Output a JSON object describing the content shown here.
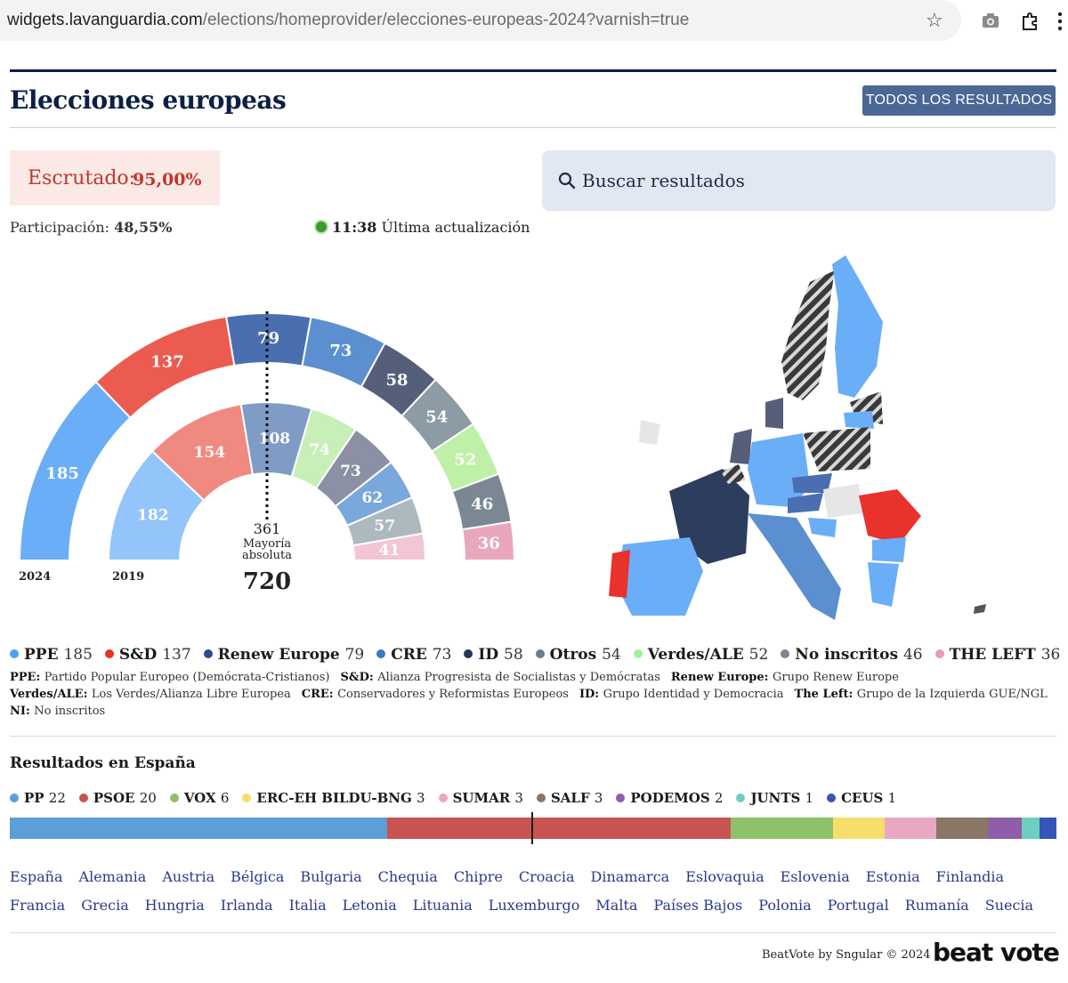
{
  "browser": {
    "host": "widgets.lavanguardia.com",
    "path": "/elections/homeprovider/elecciones-europeas-2024?varnish=true"
  },
  "header": {
    "title": "Elecciones europeas",
    "all_results_button": "TODOS LOS RESULTADOS"
  },
  "status": {
    "escrutado_label": "Escrutado:",
    "escrutado_value": "95,00%",
    "participacion_label": "Participación:",
    "participacion_value": "48,55%",
    "update_time": "11:38",
    "update_label": "Última actualización"
  },
  "search": {
    "label": "Buscar resultados"
  },
  "parliament": {
    "year_outer": "2024",
    "year_inner": "2019",
    "majority_value": "361",
    "majority_label_1": "Mayoría",
    "majority_label_2": "absoluta",
    "total_seats": "720"
  },
  "chart_data": {
    "type": "parliament-hemicycle",
    "series": [
      {
        "name": "2024",
        "parties": [
          "PPE",
          "S&D",
          "Renew Europe",
          "CRE",
          "ID",
          "Otros",
          "Verdes/ALE",
          "No inscritos",
          "THE LEFT"
        ],
        "values": [
          185,
          137,
          79,
          73,
          58,
          54,
          52,
          46,
          36
        ],
        "colors": [
          "#6aaef7",
          "#ec5b4f",
          "#4a6fb0",
          "#5b8fcf",
          "#555f7a",
          "#8c9ba4",
          "#bff0a8",
          "#7b8893",
          "#e9a7bd"
        ]
      },
      {
        "name": "2019",
        "values": [
          182,
          154,
          108,
          74,
          73,
          62,
          57,
          41
        ],
        "colors": [
          "#93c4fa",
          "#f08a80",
          "#7f9cc6",
          "#c9efb8",
          "#8b90a4",
          "#7aa7dc",
          "#adb8bf",
          "#f2c6d4"
        ]
      }
    ],
    "majority": 361,
    "total": 720
  },
  "legend": [
    {
      "abbr": "PPE",
      "seats": "185",
      "color": "#4aa3f3"
    },
    {
      "abbr": "S&D",
      "seats": "137",
      "color": "#e8322b"
    },
    {
      "abbr": "Renew Europe",
      "seats": "79",
      "color": "#2a4b8f"
    },
    {
      "abbr": "CRE",
      "seats": "73",
      "color": "#3b79c2"
    },
    {
      "abbr": "ID",
      "seats": "58",
      "color": "#273556"
    },
    {
      "abbr": "Otros",
      "seats": "54",
      "color": "#6c7c88"
    },
    {
      "abbr": "Verdes/ALE",
      "seats": "52",
      "color": "#a5eea0"
    },
    {
      "abbr": "No inscritos",
      "seats": "46",
      "color": "#7b8893"
    },
    {
      "abbr": "THE LEFT",
      "seats": "36",
      "color": "#e99ab4"
    }
  ],
  "abbreviations": {
    "row1": [
      {
        "k": "PPE:",
        "v": "Partido Popular Europeo (Demócrata-Cristianos)"
      },
      {
        "k": "S&D:",
        "v": "Alianza Progresista de Socialistas y Demócratas"
      },
      {
        "k": "Renew Europe:",
        "v": "Grupo Renew Europe"
      }
    ],
    "row2": [
      {
        "k": "Verdes/ALE:",
        "v": "Los Verdes/Alianza Libre Europea"
      },
      {
        "k": "CRE:",
        "v": "Conservadores y Reformistas Europeos"
      },
      {
        "k": "ID:",
        "v": "Grupo Identidad y Democracia"
      },
      {
        "k": "The Left:",
        "v": "Grupo de la Izquierda GUE/NGL"
      }
    ],
    "row3": [
      {
        "k": "NI:",
        "v": "No inscritos"
      }
    ]
  },
  "spain": {
    "title": "Resultados en España",
    "parties": [
      {
        "name": "PP",
        "seats": 22,
        "color": "#5b9fd6"
      },
      {
        "name": "PSOE",
        "seats": 20,
        "color": "#c85351"
      },
      {
        "name": "VOX",
        "seats": 6,
        "color": "#8dc16b"
      },
      {
        "name": "ERC-EH BILDU-BNG",
        "seats": 3,
        "color": "#f5df6a"
      },
      {
        "name": "SUMAR",
        "seats": 3,
        "color": "#e9a7c1"
      },
      {
        "name": "SALF",
        "seats": 3,
        "color": "#8a7766"
      },
      {
        "name": "PODEMOS",
        "seats": 2,
        "color": "#8e5ea8"
      },
      {
        "name": "JUNTS",
        "seats": 1,
        "color": "#6dcfbd"
      },
      {
        "name": "CEUS",
        "seats": 1,
        "color": "#3555b8"
      }
    ]
  },
  "countries_row1": [
    "España",
    "Alemania",
    "Austria",
    "Bélgica",
    "Bulgaria",
    "Chequia",
    "Chipre",
    "Croacia",
    "Dinamarca",
    "Eslovaquia",
    "Eslovenia",
    "Estonia",
    "Finlandia"
  ],
  "countries_row2": [
    "Francia",
    "Grecia",
    "Hungria",
    "Irlanda",
    "Italia",
    "Letonia",
    "Lituania",
    "Luxemburgo",
    "Malta",
    "Países Bajos",
    "Polonia",
    "Portugal",
    "Rumanía",
    "Suecia"
  ],
  "footer": {
    "credit": "BeatVote by Sngular © 2024",
    "logo": "beat vote"
  }
}
